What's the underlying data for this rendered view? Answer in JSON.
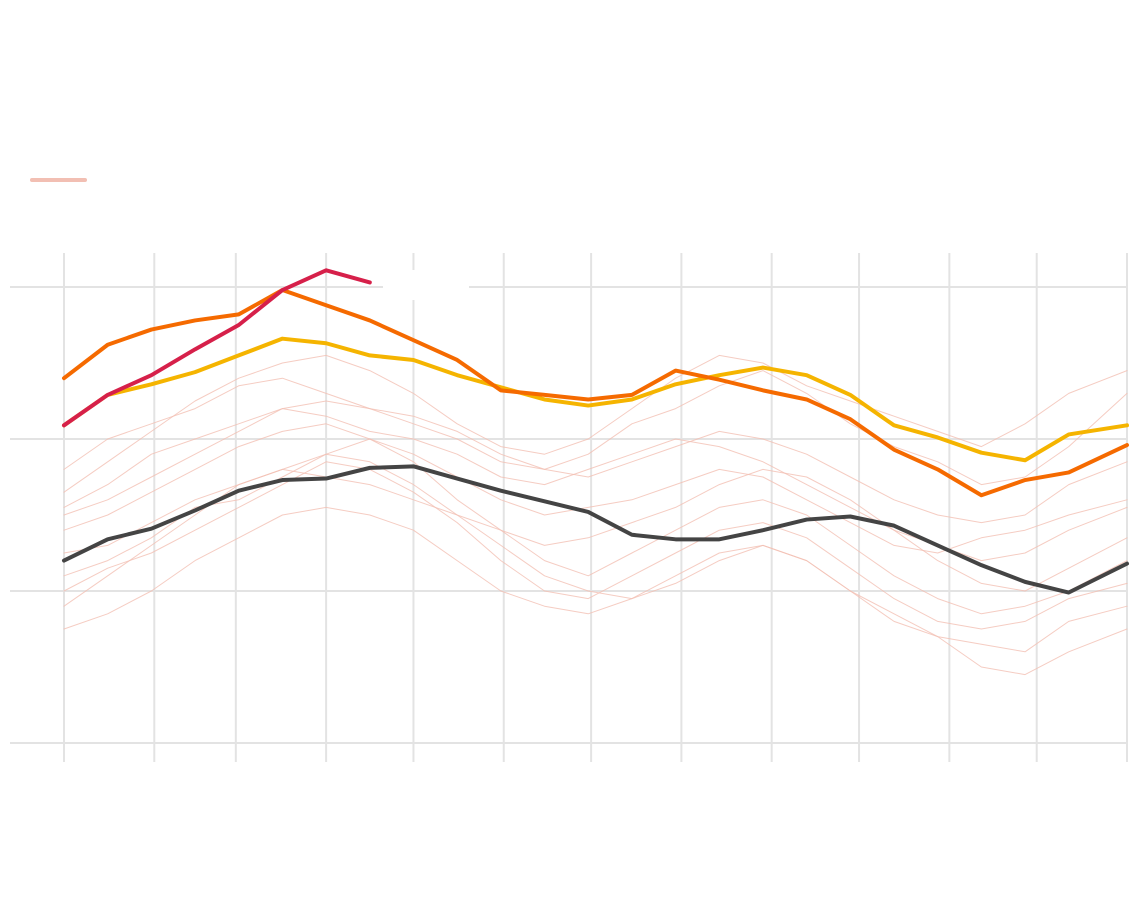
{
  "chart_data": {
    "type": "line",
    "x": [
      0,
      15,
      30,
      45,
      60,
      75,
      90,
      105,
      120,
      135,
      150,
      165,
      180,
      195,
      210,
      225,
      240,
      255,
      270,
      285,
      300,
      315,
      330,
      345,
      365
    ],
    "xlim": [
      0,
      365
    ],
    "xticks": [
      0,
      31,
      59,
      90,
      120,
      151,
      181,
      212,
      243,
      273,
      304,
      334,
      365
    ],
    "ylim": [
      -0.1,
      3.2
    ],
    "yticks": [
      0,
      1,
      2,
      3
    ],
    "grid": true,
    "legend_color": "#f2bfb3",
    "series": [
      {
        "color": "#f2bfb3",
        "faint": true,
        "values": [
          1.55,
          1.7,
          1.9,
          2.0,
          2.1,
          2.2,
          2.15,
          2.05,
          2.0,
          1.9,
          1.75,
          1.7,
          1.8,
          1.9,
          2.0,
          1.95,
          1.85,
          1.7,
          1.55,
          1.4,
          1.3,
          1.2,
          1.25,
          1.4,
          1.55
        ]
      },
      {
        "color": "#f2bfb3",
        "faint": true,
        "values": [
          0.9,
          1.1,
          1.3,
          1.5,
          1.7,
          1.8,
          1.9,
          1.85,
          1.7,
          1.5,
          1.3,
          1.1,
          1.0,
          0.95,
          1.05,
          1.2,
          1.3,
          1.2,
          1.0,
          0.8,
          0.7,
          0.65,
          0.6,
          0.8,
          0.9
        ]
      },
      {
        "color": "#f2bfb3",
        "faint": true,
        "values": [
          1.8,
          2.0,
          2.1,
          2.2,
          2.35,
          2.4,
          2.3,
          2.2,
          2.1,
          2.0,
          1.85,
          1.8,
          1.9,
          2.1,
          2.2,
          2.35,
          2.45,
          2.3,
          2.1,
          1.95,
          1.85,
          1.7,
          1.75,
          1.95,
          2.3
        ]
      },
      {
        "color": "#f2bfb3",
        "faint": true,
        "values": [
          1.1,
          1.2,
          1.35,
          1.55,
          1.6,
          1.75,
          1.9,
          2.0,
          1.85,
          1.6,
          1.4,
          1.2,
          1.1,
          1.25,
          1.4,
          1.55,
          1.6,
          1.5,
          1.3,
          1.1,
          0.95,
          0.85,
          0.9,
          1.0,
          1.2
        ]
      },
      {
        "color": "#f2bfb3",
        "faint": true,
        "values": [
          1.4,
          1.5,
          1.65,
          1.8,
          1.95,
          2.05,
          2.1,
          2.0,
          1.9,
          1.75,
          1.6,
          1.5,
          1.55,
          1.6,
          1.7,
          1.8,
          1.75,
          1.6,
          1.45,
          1.3,
          1.25,
          1.35,
          1.4,
          1.5,
          1.6
        ]
      },
      {
        "color": "#f2bfb3",
        "faint": true,
        "values": [
          0.75,
          0.85,
          1.0,
          1.2,
          1.35,
          1.5,
          1.55,
          1.5,
          1.4,
          1.2,
          1.0,
          0.9,
          0.85,
          0.95,
          1.1,
          1.25,
          1.3,
          1.2,
          1.0,
          0.85,
          0.7,
          0.5,
          0.45,
          0.6,
          0.75
        ]
      },
      {
        "color": "#f2bfb3",
        "faint": true,
        "values": [
          1.65,
          1.85,
          2.05,
          2.25,
          2.4,
          2.5,
          2.55,
          2.45,
          2.3,
          2.1,
          1.95,
          1.9,
          2.0,
          2.2,
          2.4,
          2.55,
          2.5,
          2.35,
          2.25,
          2.15,
          2.05,
          1.95,
          2.1,
          2.3,
          2.45
        ]
      },
      {
        "color": "#f2bfb3",
        "faint": true,
        "values": [
          1.25,
          1.3,
          1.45,
          1.6,
          1.7,
          1.8,
          1.75,
          1.7,
          1.6,
          1.5,
          1.4,
          1.3,
          1.35,
          1.45,
          1.55,
          1.7,
          1.8,
          1.75,
          1.6,
          1.4,
          1.2,
          1.05,
          1.0,
          1.15,
          1.35
        ]
      },
      {
        "color": "#f2bfb3",
        "faint": true,
        "values": [
          1.0,
          1.15,
          1.25,
          1.4,
          1.55,
          1.7,
          1.85,
          1.8,
          1.65,
          1.45,
          1.2,
          1.0,
          0.95,
          1.1,
          1.25,
          1.4,
          1.45,
          1.35,
          1.15,
          0.95,
          0.8,
          0.75,
          0.8,
          0.95,
          1.05
        ]
      },
      {
        "color": "#f2bfb3",
        "faint": true,
        "values": [
          1.5,
          1.6,
          1.75,
          1.9,
          2.05,
          2.2,
          2.25,
          2.2,
          2.15,
          2.05,
          1.9,
          1.8,
          1.75,
          1.85,
          1.95,
          2.05,
          2.0,
          1.9,
          1.75,
          1.6,
          1.5,
          1.45,
          1.5,
          1.7,
          1.85
        ]
      },
      {
        "color": "#444444",
        "values": [
          1.2,
          1.34,
          1.41,
          1.53,
          1.66,
          1.73,
          1.74,
          1.81,
          1.82,
          1.74,
          1.66,
          1.59,
          1.52,
          1.37,
          1.34,
          1.34,
          1.4,
          1.47,
          1.49,
          1.43,
          1.3,
          1.17,
          1.06,
          0.99,
          1.18
        ]
      },
      {
        "color": "#f5b400",
        "values": [
          2.09,
          2.29,
          2.36,
          2.44,
          2.55,
          2.66,
          2.63,
          2.55,
          2.52,
          2.42,
          2.34,
          2.26,
          2.22,
          2.26,
          2.36,
          2.42,
          2.47,
          2.42,
          2.29,
          2.09,
          2.01,
          1.91,
          1.86,
          2.03,
          2.09
        ]
      },
      {
        "color": "#f56a00",
        "values": [
          2.4,
          2.62,
          2.72,
          2.78,
          2.82,
          2.98,
          2.88,
          2.78,
          2.65,
          2.52,
          2.32,
          2.29,
          2.26,
          2.29,
          2.45,
          2.39,
          2.32,
          2.26,
          2.13,
          1.93,
          1.8,
          1.63,
          1.73,
          1.78,
          1.96
        ]
      },
      {
        "color": "#d6204a",
        "values": [
          2.09,
          2.29,
          2.42,
          2.59,
          2.75,
          2.98,
          3.11,
          3.03,
          null,
          null,
          null,
          null,
          null,
          null,
          null,
          null,
          null,
          null,
          null,
          null,
          null,
          null,
          null,
          null,
          null
        ]
      }
    ]
  }
}
